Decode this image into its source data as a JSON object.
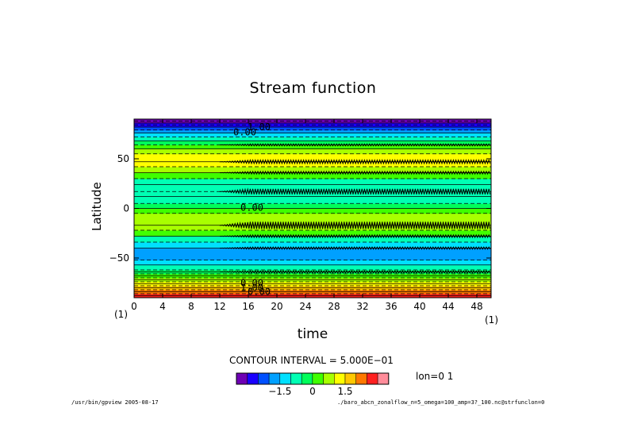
{
  "header": {
    "title": "Stream function"
  },
  "colors": {
    "bands": [
      "#6e00b4",
      "#1a00ff",
      "#0050ff",
      "#00a0ff",
      "#00e0ff",
      "#00ffb4",
      "#00ff5a",
      "#40ff00",
      "#a8ff00",
      "#ffff00",
      "#ffc800",
      "#ff7800",
      "#ff2020",
      "#ff8c9a"
    ],
    "legend": [
      "#6e00b4",
      "#1a00ff",
      "#0050ff",
      "#00a0ff",
      "#00e0ff",
      "#00ffb4",
      "#00ff5a",
      "#40ff00",
      "#a8ff00",
      "#ffff00",
      "#ffc800",
      "#ff7800",
      "#ff2020",
      "#ff8c9a"
    ]
  },
  "chart_data": {
    "type": "heatmap",
    "title": "Stream function",
    "xlabel": "time",
    "ylabel": "Latitude",
    "xlim": [
      0,
      50
    ],
    "ylim": [
      -90,
      90
    ],
    "xticks": [
      0,
      4,
      8,
      12,
      16,
      20,
      24,
      28,
      32,
      36,
      40,
      44,
      48
    ],
    "yticks": [
      -50,
      0,
      50
    ],
    "ytick_labels": [
      "−50",
      "0",
      "50"
    ],
    "contour_interval": 0.5,
    "onset_time": 12,
    "bands": [
      {
        "lat": [
          -90,
          -86
        ],
        "color": "#ff2020"
      },
      {
        "lat": [
          -86,
          -82
        ],
        "color": "#ff7800"
      },
      {
        "lat": [
          -82,
          -78
        ],
        "color": "#ffc800"
      },
      {
        "lat": [
          -78,
          -74
        ],
        "color": "#ffff00"
      },
      {
        "lat": [
          -74,
          -70
        ],
        "color": "#a8ff00"
      },
      {
        "lat": [
          -70,
          -66
        ],
        "color": "#40ff00"
      },
      {
        "lat": [
          -66,
          -62
        ],
        "color": "#00ff5a"
      },
      {
        "lat": [
          -62,
          -57
        ],
        "color": "#00ffb4"
      },
      {
        "lat": [
          -57,
          -52
        ],
        "color": "#00e0ff"
      },
      {
        "lat": [
          -52,
          -40
        ],
        "color": "#00a0ff"
      },
      {
        "lat": [
          -40,
          -34
        ],
        "color": "#00e0ff"
      },
      {
        "lat": [
          -34,
          -28
        ],
        "color": "#00ffb4"
      },
      {
        "lat": [
          -28,
          -22
        ],
        "color": "#40ff00"
      },
      {
        "lat": [
          -22,
          -5
        ],
        "color": "#a8ff00"
      },
      {
        "lat": [
          -5,
          0
        ],
        "color": "#40ff00"
      },
      {
        "lat": [
          0,
          5
        ],
        "color": "#00ff5a"
      },
      {
        "lat": [
          5,
          12
        ],
        "color": "#00ffb4"
      },
      {
        "lat": [
          12,
          30
        ],
        "color": "#00ffb4"
      },
      {
        "lat": [
          30,
          36
        ],
        "color": "#40ff00"
      },
      {
        "lat": [
          36,
          42
        ],
        "color": "#a8ff00"
      },
      {
        "lat": [
          42,
          55
        ],
        "color": "#ffff00"
      },
      {
        "lat": [
          55,
          60
        ],
        "color": "#a8ff00"
      },
      {
        "lat": [
          60,
          64
        ],
        "color": "#40ff00"
      },
      {
        "lat": [
          64,
          68
        ],
        "color": "#00ff5a"
      },
      {
        "lat": [
          68,
          72
        ],
        "color": "#00ffb4"
      },
      {
        "lat": [
          72,
          76
        ],
        "color": "#00e0ff"
      },
      {
        "lat": [
          76,
          79
        ],
        "color": "#00a0ff"
      },
      {
        "lat": [
          79,
          82
        ],
        "color": "#0050ff"
      },
      {
        "lat": [
          82,
          86
        ],
        "color": "#1a00ff"
      },
      {
        "lat": [
          86,
          90
        ],
        "color": "#6e00b4"
      }
    ],
    "contour_lines": [
      -88,
      -86,
      -84,
      -82,
      -80,
      -78,
      -76,
      -74,
      -72,
      -70,
      -68,
      -66,
      -64,
      -62,
      -57,
      -52,
      -40,
      -34,
      -28,
      -22,
      -17,
      -5,
      0,
      5,
      12,
      17,
      24,
      30,
      36,
      42,
      47,
      55,
      60,
      64,
      68,
      72,
      76,
      79,
      82,
      84,
      86,
      88
    ],
    "wavy_lines": [
      {
        "lat": -17,
        "amp": 4.5
      },
      {
        "lat": 17,
        "amp": 3.5
      },
      {
        "lat": 47,
        "amp": 2.2
      },
      {
        "lat": 36,
        "amp": 1.6
      },
      {
        "lat": -28,
        "amp": 1.6
      },
      {
        "lat": -40,
        "amp": 1.4
      },
      {
        "lat": 64,
        "amp": 1.2
      },
      {
        "lat": -64,
        "amp": 1.2
      }
    ],
    "contour_labels": [
      {
        "text": "1.00",
        "time": 17.5,
        "lat": 82
      },
      {
        "text": "0.00",
        "time": 15.5,
        "lat": 77
      },
      {
        "text": "0.00",
        "time": 16.5,
        "lat": 1
      },
      {
        "text": "0.00",
        "time": 16.5,
        "lat": -75
      },
      {
        "text": "1.00",
        "time": 16.5,
        "lat": -80
      },
      {
        "text": "0.00",
        "time": 17.5,
        "lat": -84
      }
    ],
    "legend": {
      "ticks": [
        {
          "label": "−1.5",
          "index": 4
        },
        {
          "label": "0",
          "index": 7
        },
        {
          "label": "1.5",
          "index": 10
        }
      ]
    }
  },
  "annotations": {
    "contour_interval": "CONTOUR INTERVAL = 5.000E−01",
    "lon": "lon=0 1",
    "corner_left": "(1)",
    "corner_right": "(1)"
  },
  "footer": {
    "left": "/usr/bin/gpview  2005-08-17",
    "right": "./baro_abcn_zonalflow_n=5_omega=100_amp=3?_100.nc@strfunclon=0"
  }
}
